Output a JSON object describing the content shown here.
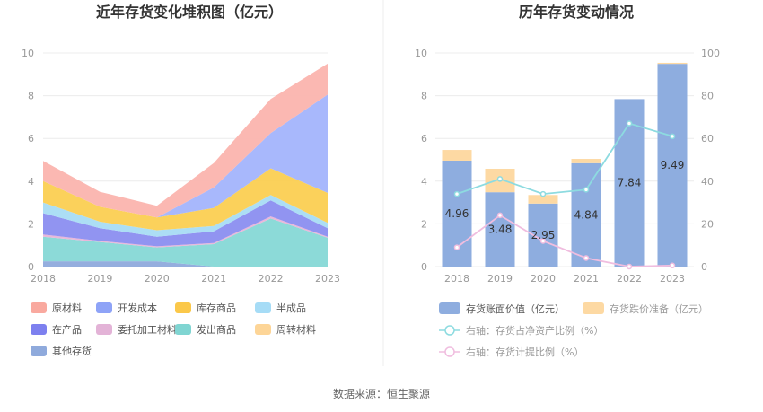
{
  "source": "数据来源：恒生聚源",
  "chart_data": [
    {
      "type": "area",
      "stacked": true,
      "title": "近年存货变化堆积图（亿元）",
      "categories": [
        "2018",
        "2019",
        "2020",
        "2021",
        "2022",
        "2023"
      ],
      "ylim": [
        0,
        10
      ],
      "yticks": [
        "0",
        "2",
        "4",
        "6",
        "8",
        "10"
      ],
      "series": [
        {
          "name": "其他存货",
          "color": "#8faadc",
          "values": [
            0.25,
            0.25,
            0.25,
            0.0,
            0.0,
            0.0
          ]
        },
        {
          "name": "发出商品",
          "color": "#86d8d6",
          "values": [
            1.15,
            0.9,
            0.65,
            1.05,
            2.25,
            1.35
          ]
        },
        {
          "name": "委托加工材料",
          "color": "#e8b4d8",
          "values": [
            0.1,
            0.05,
            0.05,
            0.05,
            0.1,
            0.05
          ]
        },
        {
          "name": "在产品",
          "color": "#8b8ef0",
          "values": [
            1.0,
            0.6,
            0.45,
            0.55,
            0.75,
            0.4
          ]
        },
        {
          "name": "半成品",
          "color": "#a8dcf4",
          "values": [
            0.5,
            0.3,
            0.3,
            0.25,
            0.25,
            0.25
          ]
        },
        {
          "name": "库存商品",
          "color": "#fbcf52",
          "values": [
            1.0,
            0.7,
            0.6,
            0.85,
            1.25,
            1.4
          ]
        },
        {
          "name": "开发成本",
          "color": "#a3b4fc",
          "values": [
            0.0,
            0.0,
            0.0,
            0.95,
            1.65,
            4.6
          ]
        },
        {
          "name": "周转材料",
          "color": "#fdd89a",
          "values": [
            0.0,
            0.0,
            0.0,
            0.0,
            0.0,
            0.0
          ]
        },
        {
          "name": "原材料",
          "color": "#fbb4ae",
          "values": [
            0.95,
            0.7,
            0.55,
            1.15,
            1.6,
            1.45
          ]
        }
      ],
      "legend": [
        {
          "name": "原材料",
          "color": "#f9a99f"
        },
        {
          "name": "开发成本",
          "color": "#8ea3f7"
        },
        {
          "name": "库存商品",
          "color": "#fbc84a"
        },
        {
          "name": "半成品",
          "color": "#a6dcf6"
        },
        {
          "name": "在产品",
          "color": "#7d80ef"
        },
        {
          "name": "委托加工材料",
          "color": "#e3b3d7"
        },
        {
          "name": "发出商品",
          "color": "#80d5d2"
        },
        {
          "name": "周转材料",
          "color": "#fdd597"
        },
        {
          "name": "其他存货",
          "color": "#8faadc"
        }
      ]
    },
    {
      "type": "bar",
      "title": "历年存货变动情况",
      "categories": [
        "2018",
        "2019",
        "2020",
        "2021",
        "2022",
        "2023"
      ],
      "ylim": [
        0,
        10
      ],
      "yticks": [
        "0",
        "2",
        "4",
        "6",
        "8",
        "10"
      ],
      "y2lim": [
        0,
        100
      ],
      "y2ticks": [
        "0",
        "20",
        "40",
        "60",
        "80",
        "100"
      ],
      "series": [
        {
          "name": "存货账面价值（亿元）",
          "color": "#8eaddf",
          "values": [
            4.96,
            3.48,
            2.95,
            4.84,
            7.84,
            9.49
          ]
        },
        {
          "name": "存货跌价准备（亿元）",
          "color": "#fdd9a3",
          "values": [
            0.5,
            1.1,
            0.4,
            0.2,
            0.0,
            0.05
          ]
        }
      ],
      "labels": [
        "4.96",
        "3.48",
        "2.95",
        "4.84",
        "7.84",
        "9.49"
      ],
      "lines": [
        {
          "name": "右轴：存货占净资产比例（%）",
          "color": "#8ddbe0",
          "values": [
            34,
            41,
            34,
            36,
            67,
            61
          ]
        },
        {
          "name": "右轴：存货计提比例（%）",
          "color": "#f0bddf",
          "values": [
            9,
            24,
            12,
            4,
            0,
            0.5
          ]
        }
      ]
    }
  ]
}
